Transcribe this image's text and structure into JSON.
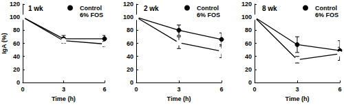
{
  "chart_data": [
    {
      "type": "line",
      "title": "1 wk",
      "ylabel": "IgA (%)",
      "xlabel": "Time (h)",
      "x": [
        0,
        3,
        6
      ],
      "series": [
        {
          "name": "Control",
          "color": "#000000",
          "marker": "filled_circle",
          "values": [
            100,
            67,
            67
          ],
          "errors": [
            0,
            5,
            5
          ]
        },
        {
          "name": "6% FOS",
          "color": "#000000",
          "marker": "open_circle",
          "values": [
            100,
            64,
            59
          ],
          "errors": [
            0,
            4,
            4
          ]
        }
      ],
      "xlim": [
        0,
        6
      ],
      "xticks": [
        0,
        3,
        6
      ],
      "ylim": [
        0,
        120
      ],
      "yticks": [
        0,
        20,
        40,
        60,
        80,
        100,
        120
      ],
      "grid": false,
      "legend": "upper right"
    },
    {
      "type": "line",
      "title": "2 wk",
      "xlabel": "Time (h)",
      "x": [
        0,
        3,
        6
      ],
      "series": [
        {
          "name": "Control",
          "color": "#000000",
          "marker": "filled_circle",
          "values": [
            100,
            80,
            66
          ],
          "errors": [
            0,
            8,
            10
          ]
        },
        {
          "name": "6% FOS",
          "color": "#000000",
          "marker": "open_circle",
          "values": [
            100,
            61,
            48
          ],
          "errors": [
            0,
            9,
            10
          ]
        }
      ],
      "xlim": [
        0,
        6
      ],
      "xticks": [
        0,
        3,
        6
      ],
      "ylim": [
        0,
        120
      ],
      "yticks": [
        0,
        20,
        40,
        60,
        80,
        100,
        120
      ],
      "grid": false,
      "legend": "upper right"
    },
    {
      "type": "line",
      "title": "8 wk",
      "xlabel": "Time (h)",
      "x": [
        0,
        3,
        6
      ],
      "series": [
        {
          "name": "Control",
          "color": "#000000",
          "marker": "filled_circle",
          "values": [
            100,
            58,
            49
          ],
          "errors": [
            0,
            12,
            15
          ]
        },
        {
          "name": "6% FOS",
          "color": "#000000",
          "marker": "open_circle",
          "values": [
            100,
            35,
            44
          ],
          "errors": [
            0,
            5,
            10
          ]
        }
      ],
      "xlim": [
        0,
        6
      ],
      "xticks": [
        0,
        3,
        6
      ],
      "ylim": [
        0,
        120
      ],
      "yticks": [
        0,
        20,
        40,
        60,
        80,
        100,
        120
      ],
      "grid": false,
      "legend": "upper right"
    }
  ]
}
